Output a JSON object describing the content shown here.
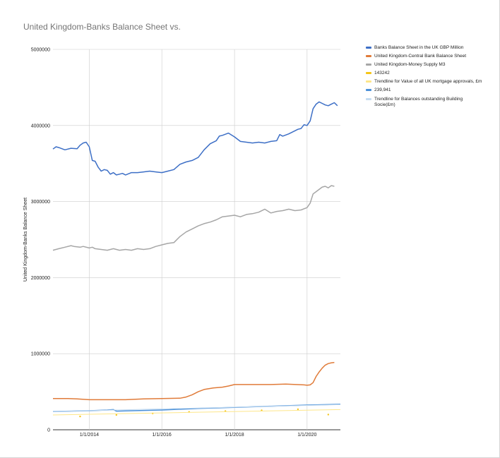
{
  "chart_data": {
    "type": "line",
    "title": "United Kingdom-Banks Balance Sheet vs.",
    "ylabel": "United Kingdom-Banks Balance Sheet",
    "xlabel": "",
    "xlim": [
      "2013-01-01",
      "2020-12-01"
    ],
    "ylim": [
      0,
      5000000
    ],
    "grid": true,
    "legend_position": "right",
    "x_ticks": [
      {
        "date": "2014-01-01",
        "label": "1/1/2014"
      },
      {
        "date": "2016-01-01",
        "label": "1/1/2016"
      },
      {
        "date": "2018-01-01",
        "label": "1/1/2018"
      },
      {
        "date": "2020-01-01",
        "label": "1/1/2020"
      }
    ],
    "y_ticks": [
      {
        "value": 0,
        "label": "0"
      },
      {
        "value": 1000000,
        "label": "1000000"
      },
      {
        "value": 2000000,
        "label": "2000000"
      },
      {
        "value": 3000000,
        "label": "3000000"
      },
      {
        "value": 4000000,
        "label": "4000000"
      },
      {
        "value": 5000000,
        "label": "5000000"
      }
    ],
    "series": [
      {
        "name": "Banks Balance Sheet in the UK GBP Million",
        "color": "#3d6fc6",
        "style": "line",
        "x": [
          "2013-01-01",
          "2013-02-01",
          "2013-03-01",
          "2013-05-01",
          "2013-07-01",
          "2013-09-01",
          "2013-10-01",
          "2013-11-01",
          "2013-12-01",
          "2014-01-01",
          "2014-02-01",
          "2014-03-01",
          "2014-04-01",
          "2014-05-01",
          "2014-06-01",
          "2014-07-01",
          "2014-08-01",
          "2014-09-01",
          "2014-10-01",
          "2014-11-01",
          "2014-12-01",
          "2015-01-01",
          "2015-03-01",
          "2015-05-01",
          "2015-07-01",
          "2015-09-01",
          "2015-11-01",
          "2016-01-01",
          "2016-03-01",
          "2016-05-01",
          "2016-07-01",
          "2016-09-01",
          "2016-11-01",
          "2017-01-01",
          "2017-03-01",
          "2017-05-01",
          "2017-07-01",
          "2017-08-01",
          "2017-09-01",
          "2017-11-01",
          "2018-01-01",
          "2018-03-01",
          "2018-05-01",
          "2018-07-01",
          "2018-09-01",
          "2018-11-01",
          "2019-01-01",
          "2019-03-01",
          "2019-04-01",
          "2019-05-01",
          "2019-07-01",
          "2019-09-01",
          "2019-10-01",
          "2019-11-01",
          "2019-12-01",
          "2020-01-01",
          "2020-02-01",
          "2020-03-01",
          "2020-04-01",
          "2020-05-01",
          "2020-06-01",
          "2020-07-01",
          "2020-08-01",
          "2020-09-01",
          "2020-10-01",
          "2020-11-01"
        ],
        "y": [
          3690000,
          3720000,
          3710000,
          3680000,
          3700000,
          3695000,
          3740000,
          3770000,
          3780000,
          3720000,
          3540000,
          3530000,
          3450000,
          3400000,
          3420000,
          3410000,
          3360000,
          3380000,
          3350000,
          3360000,
          3370000,
          3350000,
          3380000,
          3380000,
          3390000,
          3400000,
          3390000,
          3380000,
          3400000,
          3420000,
          3490000,
          3520000,
          3540000,
          3580000,
          3680000,
          3760000,
          3800000,
          3860000,
          3870000,
          3900000,
          3850000,
          3790000,
          3780000,
          3770000,
          3780000,
          3770000,
          3790000,
          3800000,
          3880000,
          3860000,
          3890000,
          3930000,
          3950000,
          3960000,
          4010000,
          4000000,
          4060000,
          4220000,
          4280000,
          4310000,
          4290000,
          4270000,
          4260000,
          4280000,
          4300000,
          4260000
        ]
      },
      {
        "name": "United Kingdom-Central Bank Balance Sheet",
        "color": "#e07b39",
        "style": "line",
        "x": [
          "2013-01-01",
          "2013-06-01",
          "2013-09-01",
          "2014-01-01",
          "2014-07-01",
          "2015-01-01",
          "2015-07-01",
          "2016-01-01",
          "2016-07-01",
          "2016-09-01",
          "2016-11-01",
          "2017-01-01",
          "2017-03-01",
          "2017-06-01",
          "2017-09-01",
          "2017-11-01",
          "2018-01-01",
          "2018-06-01",
          "2019-01-01",
          "2019-06-01",
          "2019-12-01",
          "2020-01-01",
          "2020-02-01",
          "2020-03-01",
          "2020-04-01",
          "2020-05-01",
          "2020-06-01",
          "2020-07-01",
          "2020-08-01",
          "2020-09-01",
          "2020-10-01"
        ],
        "y": [
          410000,
          410000,
          405000,
          395000,
          395000,
          395000,
          405000,
          410000,
          415000,
          430000,
          460000,
          500000,
          530000,
          550000,
          560000,
          575000,
          595000,
          595000,
          595000,
          600000,
          590000,
          585000,
          590000,
          620000,
          700000,
          760000,
          810000,
          850000,
          870000,
          880000,
          885000
        ]
      },
      {
        "name": "United Kingdom-Money Supply M3",
        "color": "#a6a6a6",
        "style": "line",
        "x": [
          "2013-01-01",
          "2013-03-01",
          "2013-05-01",
          "2013-07-01",
          "2013-08-01",
          "2013-10-01",
          "2013-11-01",
          "2014-01-01",
          "2014-02-01",
          "2014-03-01",
          "2014-05-01",
          "2014-07-01",
          "2014-09-01",
          "2014-11-01",
          "2015-01-01",
          "2015-03-01",
          "2015-05-01",
          "2015-07-01",
          "2015-09-01",
          "2015-11-01",
          "2016-01-01",
          "2016-03-01",
          "2016-05-01",
          "2016-07-01",
          "2016-09-01",
          "2016-11-01",
          "2017-01-01",
          "2017-03-01",
          "2017-05-01",
          "2017-07-01",
          "2017-09-01",
          "2017-11-01",
          "2018-01-01",
          "2018-03-01",
          "2018-05-01",
          "2018-07-01",
          "2018-09-01",
          "2018-11-01",
          "2019-01-01",
          "2019-03-01",
          "2019-05-01",
          "2019-07-01",
          "2019-09-01",
          "2019-11-01",
          "2020-01-01",
          "2020-02-01",
          "2020-03-01",
          "2020-04-01",
          "2020-05-01",
          "2020-06-01",
          "2020-07-01",
          "2020-08-01",
          "2020-09-01",
          "2020-10-01"
        ],
        "y": [
          2360000,
          2380000,
          2400000,
          2420000,
          2410000,
          2400000,
          2410000,
          2390000,
          2400000,
          2380000,
          2370000,
          2360000,
          2380000,
          2360000,
          2370000,
          2360000,
          2380000,
          2370000,
          2380000,
          2410000,
          2430000,
          2450000,
          2460000,
          2540000,
          2600000,
          2640000,
          2680000,
          2710000,
          2730000,
          2760000,
          2800000,
          2810000,
          2820000,
          2800000,
          2830000,
          2840000,
          2860000,
          2900000,
          2850000,
          2870000,
          2880000,
          2900000,
          2880000,
          2890000,
          2920000,
          2980000,
          3100000,
          3130000,
          3160000,
          3190000,
          3200000,
          3180000,
          3210000,
          3200000
        ]
      },
      {
        "name": "143242",
        "color": "#f5c518",
        "style": "scatter",
        "x": [
          "2013-10-01",
          "2014-10-01",
          "2015-10-01",
          "2016-10-01",
          "2017-10-01",
          "2018-10-01",
          "2019-10-01",
          "2020-08-01"
        ],
        "y": [
          175000,
          195000,
          215000,
          235000,
          245000,
          255000,
          270000,
          200000
        ]
      },
      {
        "name": "Trendline for Value of all UK mortgage approvals, £m",
        "color": "#fde68a",
        "style": "trendline",
        "x": [
          "2013-01-01",
          "2020-12-01"
        ],
        "y": [
          195000,
          265000
        ]
      },
      {
        "name": "239,941",
        "color": "#4a90d9",
        "style": "line",
        "x": [
          "2013-01-01",
          "2014-01-01",
          "2014-07-01",
          "2014-09-01",
          "2014-10-01",
          "2015-01-01",
          "2016-01-01",
          "2017-01-01",
          "2018-01-01",
          "2019-01-01",
          "2020-01-01",
          "2020-12-01"
        ],
        "y": [
          240000,
          250000,
          260000,
          265000,
          245000,
          248000,
          260000,
          280000,
          295000,
          310000,
          325000,
          335000
        ]
      },
      {
        "name": "Trendline for Balances outstanding Building Socie(£m)",
        "color": "#c5dcf1",
        "style": "trendline",
        "x": [
          "2013-01-01",
          "2020-12-01"
        ],
        "y": [
          240000,
          330000
        ]
      }
    ]
  }
}
